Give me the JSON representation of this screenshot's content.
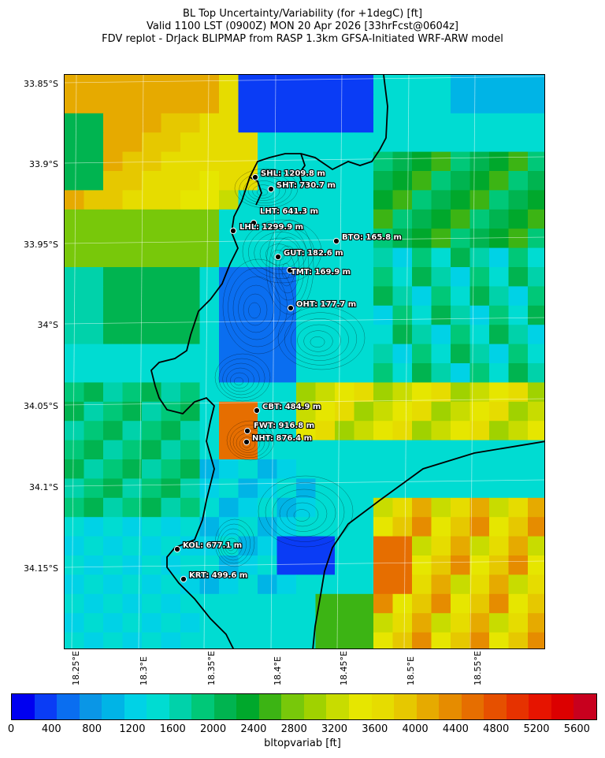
{
  "header": {
    "line1": "BL Top Uncertainty/Variability (for +1degC) [ft]",
    "line2": "Valid 1100 LST (0900Z) MON 20 Apr 2026 [33hrFcst@0604z]",
    "line3": "FDV replot - DrJack BLIPMAP from RASP 1.3km GFSA-Initiated WRF-ARW model"
  },
  "map": {
    "lat_labels": [
      "33.85°S",
      "33.9°S",
      "33.95°S",
      "34°S",
      "34.05°S",
      "34.1°S",
      "34.15°S"
    ],
    "lon_labels": [
      "18.25°E",
      "18.3°E",
      "18.35°E",
      "18.4°E",
      "18.45°E",
      "18.5°E",
      "18.55°E"
    ],
    "stations": [
      {
        "code": "SHL",
        "text": "SHL: 1209.8 m"
      },
      {
        "code": "SHT",
        "text": "SHT: 730.7 m"
      },
      {
        "code": "LHT",
        "text": "LHT: 641.3 m"
      },
      {
        "code": "LHL",
        "text": "LHL: 1299.9 m"
      },
      {
        "code": "BTO",
        "text": "BTO: 165.8 m"
      },
      {
        "code": "GUT",
        "text": "GUT: 182.6 m"
      },
      {
        "code": "TMT",
        "text": "TMT: 169.9 m"
      },
      {
        "code": "OHT",
        "text": "OHT: 177.7 m"
      },
      {
        "code": "CBT",
        "text": "CBT: 484.9 m"
      },
      {
        "code": "FWT",
        "text": "FWT: 916.8 m"
      },
      {
        "code": "NHT",
        "text": "NHT: 876.4 m"
      },
      {
        "code": "KOL",
        "text": "KOL: 677.1 m"
      },
      {
        "code": "KRT",
        "text": "KRT: 499.6 m"
      }
    ]
  },
  "colorbar": {
    "label": "bltopvariab [ft]",
    "ticks": [
      "0",
      "400",
      "800",
      "1200",
      "1600",
      "2000",
      "2400",
      "2800",
      "3200",
      "3600",
      "4000",
      "4400",
      "4800",
      "5200",
      "5600"
    ],
    "colors": [
      "#0000f0",
      "#0a3cf5",
      "#0a6ef0",
      "#0a96e6",
      "#00b4e6",
      "#00d2e6",
      "#00dcd2",
      "#00d2aa",
      "#00c878",
      "#00b450",
      "#00a82c",
      "#3cb414",
      "#78c80a",
      "#a0d200",
      "#c8dc00",
      "#e6e600",
      "#e6dc00",
      "#e6c800",
      "#e6aa00",
      "#e68c00",
      "#e66e00",
      "#e65000",
      "#e63200",
      "#e61400",
      "#dc0000",
      "#c8001e"
    ]
  }
}
